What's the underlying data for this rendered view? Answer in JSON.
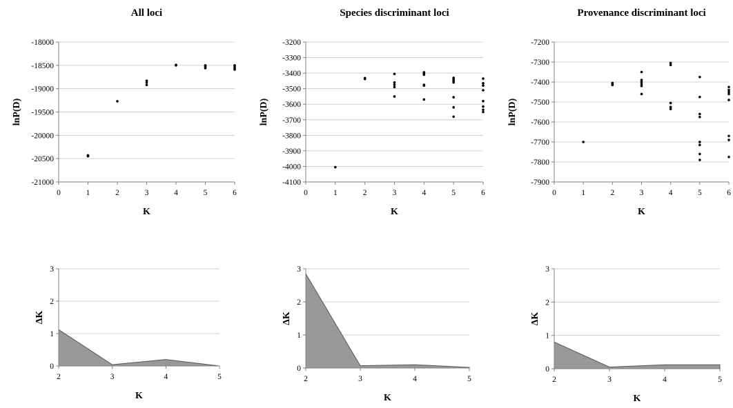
{
  "chart_data": [
    {
      "type": "scatter",
      "title": "All loci",
      "xlabel": "K",
      "ylabel": "lnP(D)",
      "xlim": [
        0,
        6
      ],
      "ylim": [
        -21000,
        -18000
      ],
      "xticks": [
        0,
        1,
        2,
        3,
        4,
        5,
        6
      ],
      "yticks": [
        -21000,
        -20500,
        -20000,
        -19500,
        -19000,
        -18500,
        -18000
      ],
      "grid": true,
      "points": [
        [
          1,
          -20430
        ],
        [
          1,
          -20440
        ],
        [
          1,
          -20450
        ],
        [
          2,
          -19270
        ],
        [
          3,
          -18830
        ],
        [
          3,
          -18870
        ],
        [
          3,
          -18920
        ],
        [
          4,
          -18490
        ],
        [
          4,
          -18500
        ],
        [
          5,
          -18500
        ],
        [
          5,
          -18520
        ],
        [
          5,
          -18540
        ],
        [
          5,
          -18560
        ],
        [
          6,
          -18500
        ],
        [
          6,
          -18530
        ],
        [
          6,
          -18560
        ],
        [
          6,
          -18590
        ]
      ]
    },
    {
      "type": "scatter",
      "title": "Species discriminant loci",
      "xlabel": "K",
      "ylabel": "lnP(D)",
      "xlim": [
        0,
        6
      ],
      "ylim": [
        -4100,
        -3200
      ],
      "xticks": [
        0,
        1,
        2,
        3,
        4,
        5,
        6
      ],
      "yticks": [
        -4100,
        -4000,
        -3900,
        -3800,
        -3700,
        -3600,
        -3500,
        -3400,
        -3300,
        -3200
      ],
      "grid": true,
      "points": [
        [
          1,
          -4005
        ],
        [
          2,
          -3432
        ],
        [
          2,
          -3438
        ],
        [
          3,
          -3405
        ],
        [
          3,
          -3460
        ],
        [
          3,
          -3475
        ],
        [
          3,
          -3490
        ],
        [
          3,
          -3550
        ],
        [
          4,
          -3395
        ],
        [
          4,
          -3402
        ],
        [
          4,
          -3410
        ],
        [
          4,
          -3475
        ],
        [
          4,
          -3480
        ],
        [
          4,
          -3570
        ],
        [
          5,
          -3430
        ],
        [
          5,
          -3440
        ],
        [
          5,
          -3450
        ],
        [
          5,
          -3460
        ],
        [
          5,
          -3555
        ],
        [
          5,
          -3620
        ],
        [
          5,
          -3680
        ],
        [
          6,
          -3435
        ],
        [
          6,
          -3465
        ],
        [
          6,
          -3480
        ],
        [
          6,
          -3510
        ],
        [
          6,
          -3580
        ],
        [
          6,
          -3615
        ],
        [
          6,
          -3635
        ],
        [
          6,
          -3650
        ]
      ]
    },
    {
      "type": "scatter",
      "title": "Provenance discriminant loci",
      "xlabel": "K",
      "ylabel": "lnP(D)",
      "xlim": [
        0,
        6
      ],
      "ylim": [
        -7900,
        -7200
      ],
      "xticks": [
        0,
        1,
        2,
        3,
        4,
        5,
        6
      ],
      "yticks": [
        -7900,
        -7800,
        -7700,
        -7600,
        -7500,
        -7400,
        -7300,
        -7200
      ],
      "grid": true,
      "points": [
        [
          1,
          -7700
        ],
        [
          2,
          -7405
        ],
        [
          2,
          -7410
        ],
        [
          2,
          -7415
        ],
        [
          3,
          -7350
        ],
        [
          3,
          -7390
        ],
        [
          3,
          -7400
        ],
        [
          3,
          -7410
        ],
        [
          3,
          -7420
        ],
        [
          3,
          -7460
        ],
        [
          4,
          -7305
        ],
        [
          4,
          -7315
        ],
        [
          4,
          -7505
        ],
        [
          4,
          -7525
        ],
        [
          4,
          -7535
        ],
        [
          5,
          -7375
        ],
        [
          5,
          -7475
        ],
        [
          5,
          -7560
        ],
        [
          5,
          -7575
        ],
        [
          5,
          -7700
        ],
        [
          5,
          -7715
        ],
        [
          5,
          -7760
        ],
        [
          5,
          -7790
        ],
        [
          6,
          -7425
        ],
        [
          6,
          -7440
        ],
        [
          6,
          -7450
        ],
        [
          6,
          -7460
        ],
        [
          6,
          -7490
        ],
        [
          6,
          -7670
        ],
        [
          6,
          -7690
        ],
        [
          6,
          -7775
        ]
      ]
    },
    {
      "type": "area",
      "xlabel": "K",
      "ylabel": "ΔK",
      "xlim": [
        2,
        5
      ],
      "ylim": [
        0,
        3
      ],
      "xticks": [
        2,
        3,
        4,
        5
      ],
      "yticks": [
        0,
        1,
        2,
        3
      ],
      "grid": true,
      "x": [
        2,
        3,
        4,
        5
      ],
      "values": [
        1.12,
        0.04,
        0.2,
        0.0
      ]
    },
    {
      "type": "area",
      "xlabel": "K",
      "ylabel": "ΔK",
      "xlim": [
        2,
        5
      ],
      "ylim": [
        0,
        3
      ],
      "xticks": [
        2,
        3,
        4,
        5
      ],
      "yticks": [
        0,
        1,
        2,
        3
      ],
      "grid": true,
      "x": [
        2,
        3,
        4,
        5
      ],
      "values": [
        2.85,
        0.07,
        0.1,
        0.02
      ]
    },
    {
      "type": "area",
      "xlabel": "K",
      "ylabel": "ΔK",
      "xlim": [
        2,
        5
      ],
      "ylim": [
        0,
        3
      ],
      "xticks": [
        2,
        3,
        4,
        5
      ],
      "yticks": [
        0,
        1,
        2,
        3
      ],
      "grid": true,
      "x": [
        2,
        3,
        4,
        5
      ],
      "values": [
        0.8,
        0.05,
        0.12,
        0.12
      ]
    }
  ],
  "colors": {
    "fill": "#999999",
    "stroke": "#555555",
    "grid": "#d0d0d0",
    "axis": "#808080",
    "point": "#000000"
  }
}
